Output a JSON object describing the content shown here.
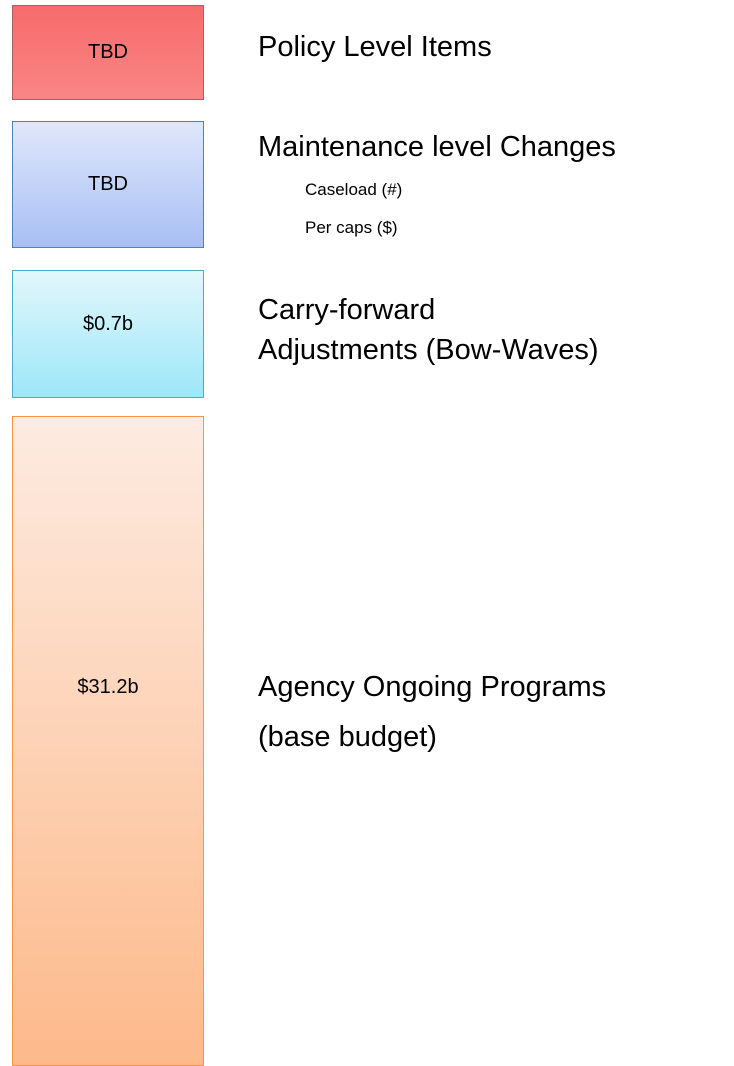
{
  "blocks": [
    {
      "value": "TBD",
      "lines": [
        "Policy Level Items"
      ]
    },
    {
      "value": "TBD",
      "lines": [
        "Maintenance level Changes"
      ],
      "sub": [
        "Caseload (#)",
        "Per caps ($)"
      ]
    },
    {
      "value": "$0.7b",
      "lines": [
        "Carry-forward",
        "Adjustments (Bow-Waves)"
      ]
    },
    {
      "value": "$31.2b",
      "lines": [
        "Agency Ongoing Programs",
        "(base budget)"
      ]
    }
  ]
}
